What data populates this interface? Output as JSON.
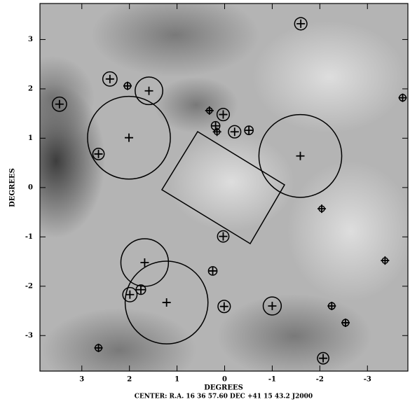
{
  "chart_data": {
    "type": "scatter",
    "title": "CENTER:  R.A. 16 36 57.60    DEC  +41 15 43.2    J2000",
    "x_label": "DEGREES",
    "y_label": "DEGREES",
    "xlim": [
      3.88,
      -3.85
    ],
    "ylim": [
      -3.72,
      3.73
    ],
    "xticks": [
      3,
      2,
      1,
      0,
      -1,
      -2,
      -3
    ],
    "yticks": [
      -3,
      -2,
      -1,
      0,
      1,
      2,
      3
    ],
    "color": "#000000",
    "x": [
      -1.6,
      2.41,
      2.04,
      1.59,
      3.47,
      2.01,
      2.65,
      0.32,
      0.03,
      0.19,
      0.16,
      -0.21,
      -0.51,
      -3.74,
      -1.59,
      -2.04,
      0.03,
      1.68,
      0.25,
      1.22,
      1.99,
      1.76,
      0.01,
      -1.0,
      -2.25,
      -3.37,
      -2.54,
      2.65,
      -2.07
    ],
    "y": [
      3.32,
      2.2,
      2.06,
      1.96,
      1.69,
      1.01,
      0.68,
      1.56,
      1.48,
      1.25,
      1.13,
      1.13,
      1.16,
      1.82,
      0.64,
      -0.43,
      -0.99,
      -1.52,
      -1.69,
      -2.33,
      -2.17,
      -2.07,
      -2.41,
      -2.4,
      -2.4,
      -1.48,
      -2.74,
      -3.25,
      -3.46
    ],
    "r": [
      0.13,
      0.15,
      0.07,
      0.29,
      0.15,
      0.87,
      0.12,
      0.06,
      0.13,
      0.09,
      0.06,
      0.13,
      0.09,
      0.07,
      0.87,
      0.06,
      0.12,
      0.5,
      0.09,
      0.87,
      0.15,
      0.1,
      0.13,
      0.19,
      0.07,
      0.06,
      0.07,
      0.07,
      0.12
    ]
  }
}
